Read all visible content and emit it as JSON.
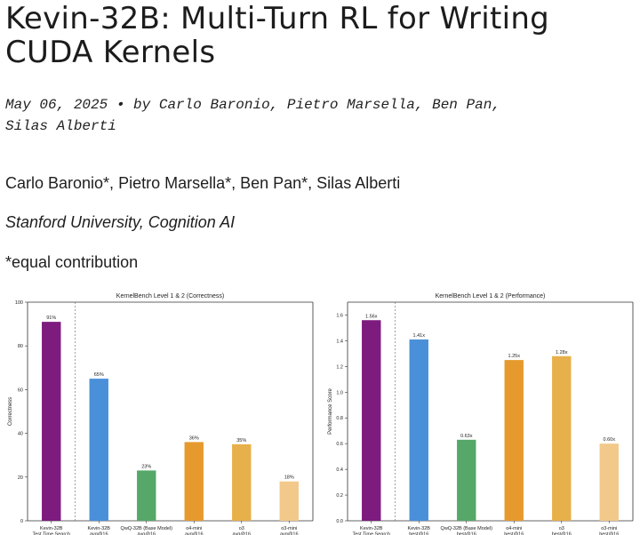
{
  "post": {
    "title": "Kevin-32B: Multi-Turn RL for Writing CUDA Kernels",
    "date": "May 06, 2025",
    "separator": "•",
    "byline": "by Carlo Baronio, Pietro Marsella, Ben Pan, Silas Alberti",
    "authors": "Carlo Baronio*, Pietro Marsella*, Ben Pan*, Silas Alberti",
    "affiliation": "Stanford University, Cognition AI",
    "note": "*equal contribution"
  },
  "chart_data": [
    {
      "type": "bar",
      "title": "KernelBench Level 1 & 2 (Correctness)",
      "xlabel": "",
      "ylabel": "Correctness",
      "ylim": [
        0,
        100
      ],
      "yticks": [
        0,
        20,
        40,
        60,
        80,
        100
      ],
      "ytick_labels": [
        "0",
        "20",
        "40",
        "60",
        "80",
        "100"
      ],
      "categories": [
        [
          "Kevin-32B",
          "Test Time Search"
        ],
        [
          "Kevin-32B",
          "avg@16"
        ],
        [
          "QwQ-32B (Base Model)",
          "avg@16"
        ],
        [
          "o4-mini",
          "avg@16"
        ],
        [
          "o3",
          "avg@16"
        ],
        [
          "o3-mini",
          "avg@16"
        ]
      ],
      "values": [
        91,
        65,
        23,
        36,
        35,
        18
      ],
      "data_labels": [
        "91%",
        "65%",
        "23%",
        "36%",
        "35%",
        "18%"
      ],
      "colors": [
        "#7d1b7e",
        "#4a90d9",
        "#55a868",
        "#e69a2e",
        "#e8b04a",
        "#f2c98a"
      ],
      "divider_after_index": 0,
      "grid": false
    },
    {
      "type": "bar",
      "title": "KernelBench Level 1 & 2 (Performance)",
      "xlabel": "",
      "ylabel": "Performance Score",
      "ylim": [
        0,
        1.7
      ],
      "yticks": [
        0,
        0.2,
        0.4,
        0.6,
        0.8,
        1.0,
        1.2,
        1.4,
        1.6
      ],
      "ytick_labels": [
        "0.0",
        "0.2",
        "0.4",
        "0.6",
        "0.8",
        "1.0",
        "1.2",
        "1.4",
        "1.6"
      ],
      "categories": [
        [
          "Kevin-32B",
          "Test Time Search"
        ],
        [
          "Kevin-32B",
          "best@16"
        ],
        [
          "QwQ-32B (Base Model)",
          "best@16"
        ],
        [
          "o4-mini",
          "best@16"
        ],
        [
          "o3",
          "best@16"
        ],
        [
          "o3-mini",
          "best@16"
        ]
      ],
      "values": [
        1.56,
        1.41,
        0.63,
        1.25,
        1.28,
        0.6
      ],
      "data_labels": [
        "1.56x",
        "1.41x",
        "0.63x",
        "1.25x",
        "1.28x",
        "0.60x"
      ],
      "colors": [
        "#7d1b7e",
        "#4a90d9",
        "#55a868",
        "#e69a2e",
        "#e8b04a",
        "#f2c98a"
      ],
      "divider_after_index": 0,
      "grid": false
    }
  ]
}
